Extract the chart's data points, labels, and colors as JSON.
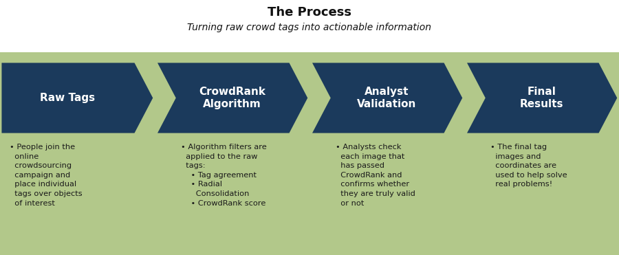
{
  "title": "The Process",
  "subtitle": "Turning raw crowd tags into actionable information",
  "background_color": "#b2c88a",
  "arrow_color": "#1b3a5c",
  "text_color_white": "#ffffff",
  "text_color_dark": "#1a1a1a",
  "fig_width": 9.0,
  "fig_height": 3.71,
  "title_fontsize": 13,
  "subtitle_fontsize": 10,
  "label_fontsize": 11,
  "bullet_fontsize": 8.2,
  "steps": [
    {
      "label": "Raw Tags",
      "bullet": "• People join the\n  online\n  crowdsourcing\n  campaign and\n  place individual\n  tags over objects\n  of interest"
    },
    {
      "label": "CrowdRank\nAlgorithm",
      "bullet": "• Algorithm filters are\n  applied to the raw\n  tags:\n    • Tag agreement\n    • Radial\n      Consolidation\n    • CrowdRank score"
    },
    {
      "label": "Analyst\nValidation",
      "bullet": "• Analysts check\n  each image that\n  has passed\n  CrowdRank and\n  confirms whether\n  they are truly valid\n  or not"
    },
    {
      "label": "Final\nResults",
      "bullet": "• The final tag\n  images and\n  coordinates are\n  used to help solve\n  real problems!"
    }
  ]
}
